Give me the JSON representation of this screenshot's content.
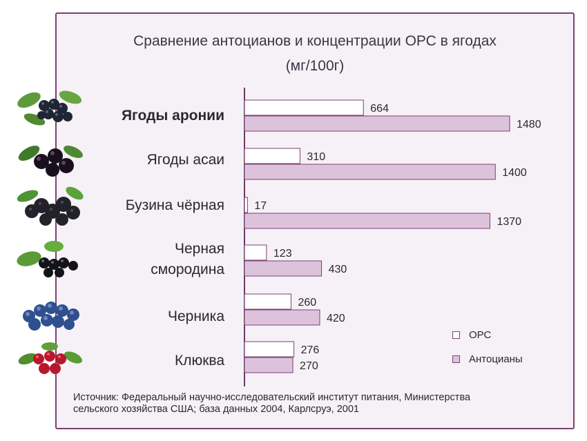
{
  "title": {
    "line1": "Сравнение антоцианов и концентрации ОРС в ягодах",
    "line2": "(мг/100г)"
  },
  "source": {
    "line1": "Источник: Федеральный научно-исследовательский институт питания, Министерства",
    "line2": "сельского хозяйства США; база данных 2004, Карлсруэ, 2001"
  },
  "legend": [
    {
      "label": "ОРС",
      "color": "#ffffff"
    },
    {
      "label": "Антоцианы",
      "color": "#dcc3db"
    }
  ],
  "colors": {
    "frame_border": "#7a3f72",
    "frame_fill": "#f6f1f6",
    "opc_fill": "#ffffff",
    "anth_fill": "#dcc3db",
    "bar_stroke": "#7a3f72"
  },
  "berries": [
    {
      "icon": "aronia-berries-icon"
    },
    {
      "icon": "acai-berries-icon"
    },
    {
      "icon": "black-elderberry-icon"
    },
    {
      "icon": "black-currant-icon"
    },
    {
      "icon": "blueberry-icon"
    },
    {
      "icon": "cranberry-icon"
    }
  ],
  "chart_data": {
    "type": "bar",
    "orientation": "horizontal",
    "categories": [
      "Ягоды аронии",
      "Ягоды асаи",
      "Бузина чёрная",
      "Черная смородина",
      "Черника",
      "Клюква"
    ],
    "category_lines": [
      [
        "Ягоды аронии"
      ],
      [
        "Ягоды асаи"
      ],
      [
        "Бузина чёрная"
      ],
      [
        "Черная",
        "смородина"
      ],
      [
        "Черника"
      ],
      [
        "Клюква"
      ]
    ],
    "series": [
      {
        "name": "ОРС",
        "values": [
          664,
          310,
          17,
          123,
          260,
          276
        ]
      },
      {
        "name": "Антоцианы",
        "values": [
          1480,
          1400,
          1370,
          430,
          420,
          270
        ]
      }
    ],
    "title": "Сравнение антоцианов и концентрации ОРС в ягодах (мг/100г)",
    "xlim": [
      0,
      1600
    ],
    "data_labels": true,
    "grid": false,
    "legend_position": "bottom-right"
  }
}
